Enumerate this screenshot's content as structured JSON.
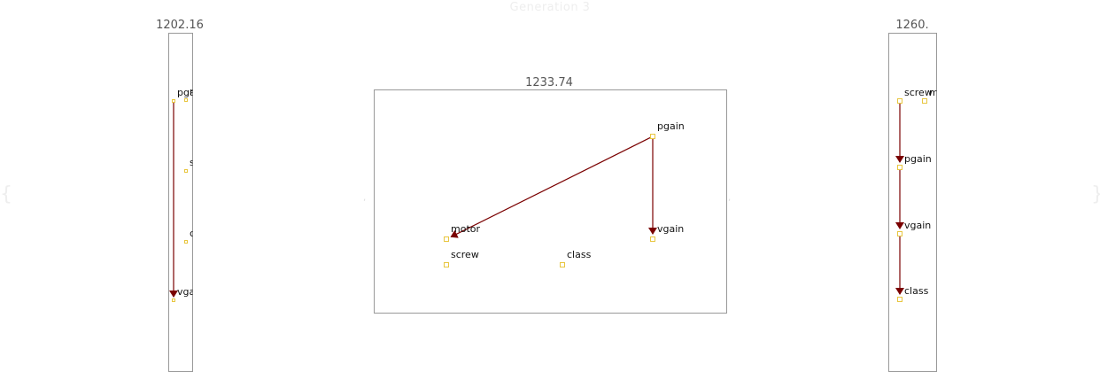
{
  "title": "Generation 3",
  "colors": {
    "edge": "#7a0000",
    "node_border": "#e8c640",
    "panel_border": "#999999",
    "score_text": "#555555",
    "title_text": "#eeeeee"
  },
  "panels": [
    {
      "id": "left",
      "score": "1202.16",
      "nodes": [
        {
          "id": "pgain",
          "label": "pgain"
        },
        {
          "id": "motor",
          "label": "motor"
        },
        {
          "id": "screw",
          "label": "screw"
        },
        {
          "id": "class",
          "label": "class"
        },
        {
          "id": "vgain",
          "label": "vgain"
        }
      ],
      "edges": [
        {
          "from": "pgain",
          "to": "vgain"
        }
      ]
    },
    {
      "id": "middle",
      "score": "1233.74",
      "nodes": [
        {
          "id": "pgain",
          "label": "pgain"
        },
        {
          "id": "motor",
          "label": "motor"
        },
        {
          "id": "vgain",
          "label": "vgain"
        },
        {
          "id": "screw",
          "label": "screw"
        },
        {
          "id": "class",
          "label": "class"
        }
      ],
      "edges": [
        {
          "from": "pgain",
          "to": "motor"
        },
        {
          "from": "pgain",
          "to": "vgain"
        }
      ]
    },
    {
      "id": "right",
      "score": "1260.",
      "nodes": [
        {
          "id": "screw",
          "label": "screw"
        },
        {
          "id": "motor",
          "label": "mo"
        },
        {
          "id": "pgain",
          "label": "pgain"
        },
        {
          "id": "vgain",
          "label": "vgain"
        },
        {
          "id": "class",
          "label": "class"
        }
      ],
      "edges": [
        {
          "from": "screw",
          "to": "pgain"
        },
        {
          "from": "pgain",
          "to": "vgain"
        },
        {
          "from": "vgain",
          "to": "class"
        }
      ]
    }
  ]
}
